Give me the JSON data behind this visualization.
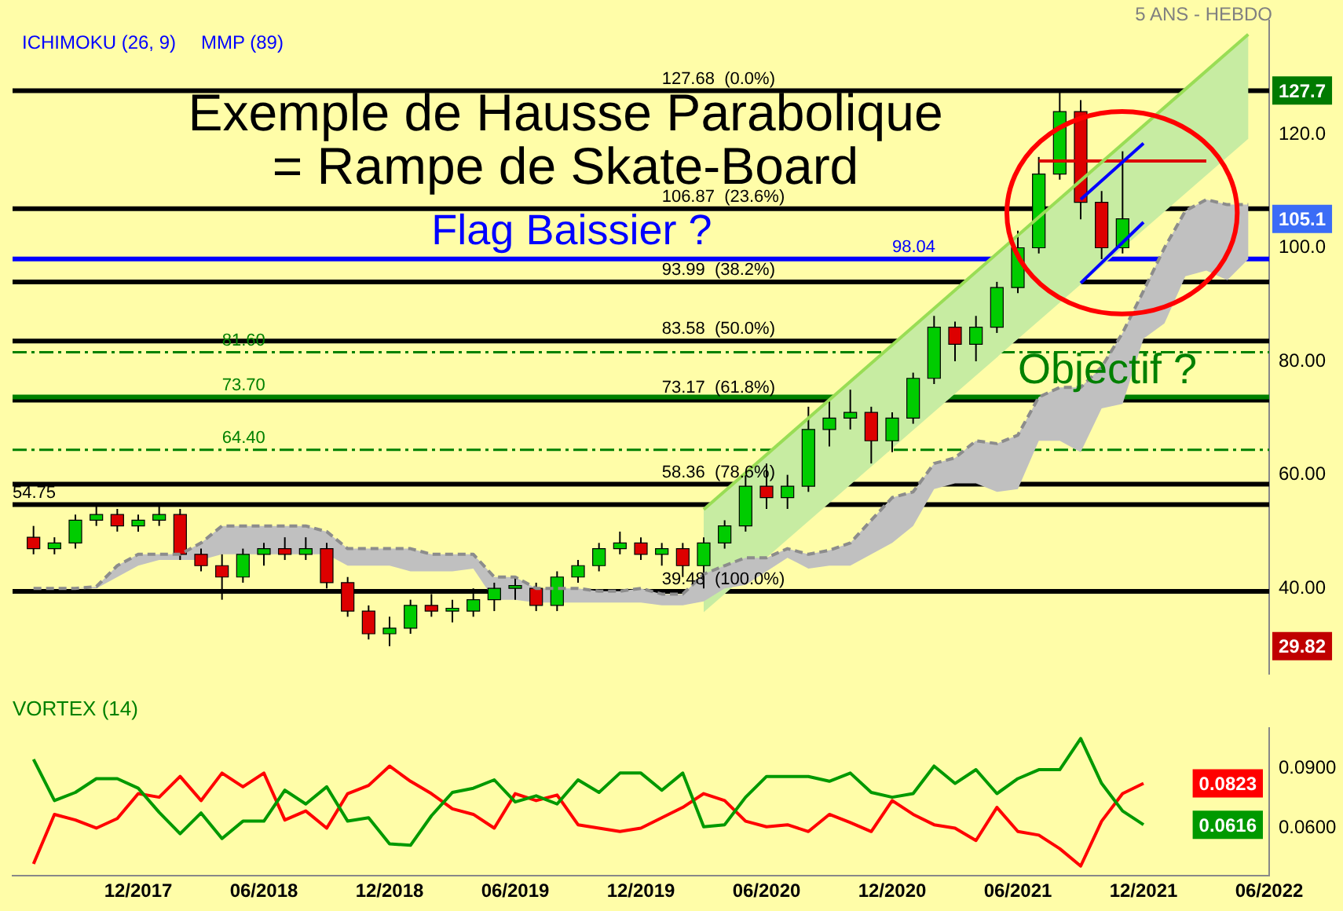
{
  "chart_data": [
    {
      "type": "candlestick",
      "title": "Exemple de Hausse Parabolique\n= Rampe de Skate-Board",
      "subtitle": "5 ANS - HEBDO",
      "x": [
        "2017-07",
        "2017-08",
        "2017-09",
        "2017-10",
        "2017-11",
        "2017-12",
        "2018-01",
        "2018-02",
        "2018-03",
        "2018-04",
        "2018-05",
        "2018-06",
        "2018-07",
        "2018-08",
        "2018-09",
        "2018-10",
        "2018-11",
        "2018-12",
        "2019-01",
        "2019-02",
        "2019-03",
        "2019-04",
        "2019-05",
        "2019-06",
        "2019-07",
        "2019-08",
        "2019-09",
        "2019-10",
        "2019-11",
        "2019-12",
        "2020-01",
        "2020-02",
        "2020-03",
        "2020-04",
        "2020-05",
        "2020-06",
        "2020-07",
        "2020-08",
        "2020-09",
        "2020-10",
        "2020-11",
        "2020-12",
        "2021-01",
        "2021-02",
        "2021-03",
        "2021-04",
        "2021-05",
        "2021-06",
        "2021-07",
        "2021-08",
        "2021-09",
        "2021-10",
        "2021-11"
      ],
      "ohlc": [
        [
          49,
          51,
          46,
          47
        ],
        [
          47,
          49,
          46,
          48
        ],
        [
          48,
          53,
          47,
          52
        ],
        [
          52,
          55,
          51,
          53
        ],
        [
          53,
          54,
          50,
          51
        ],
        [
          51,
          53,
          50,
          52
        ],
        [
          52,
          55,
          51,
          53
        ],
        [
          53,
          54,
          45,
          46
        ],
        [
          46,
          47,
          43,
          44
        ],
        [
          44,
          46,
          38,
          42
        ],
        [
          42,
          47,
          41,
          46
        ],
        [
          46,
          48,
          44,
          47
        ],
        [
          47,
          49,
          45,
          46
        ],
        [
          46,
          49,
          45,
          47
        ],
        [
          47,
          48,
          40,
          41
        ],
        [
          41,
          42,
          35,
          36
        ],
        [
          36,
          37,
          31,
          32
        ],
        [
          32,
          35,
          29.82,
          33
        ],
        [
          33,
          38,
          32,
          37
        ],
        [
          37,
          39,
          35,
          36
        ],
        [
          36,
          38,
          34,
          36.5
        ],
        [
          36,
          40,
          35,
          38
        ],
        [
          38,
          41,
          36,
          40
        ],
        [
          40,
          42,
          38,
          40.5
        ],
        [
          40,
          41,
          36,
          37
        ],
        [
          37,
          43,
          36,
          42
        ],
        [
          42,
          45,
          41,
          44
        ],
        [
          44,
          48,
          43,
          47
        ],
        [
          47,
          50,
          46,
          48
        ],
        [
          48,
          49,
          45,
          46
        ],
        [
          46,
          48,
          44,
          47
        ],
        [
          47,
          48,
          42,
          44
        ],
        [
          44,
          49,
          40,
          48
        ],
        [
          48,
          52,
          47,
          51
        ],
        [
          51,
          60,
          50,
          58
        ],
        [
          58,
          62,
          54,
          56
        ],
        [
          56,
          60,
          54,
          58
        ],
        [
          58,
          72,
          57,
          68
        ],
        [
          68,
          73,
          65,
          70
        ],
        [
          70,
          75,
          68,
          71
        ],
        [
          71,
          72,
          62,
          66
        ],
        [
          66,
          71,
          64,
          70
        ],
        [
          70,
          78,
          69,
          77
        ],
        [
          77,
          88,
          76,
          86
        ],
        [
          86,
          87,
          80,
          83
        ],
        [
          83,
          88,
          80,
          86
        ],
        [
          86,
          94,
          85,
          93
        ],
        [
          93,
          103,
          92,
          100
        ],
        [
          100,
          116,
          99,
          113
        ],
        [
          113,
          127.7,
          112,
          124
        ],
        [
          124,
          126,
          105,
          108
        ],
        [
          108,
          110,
          98,
          100
        ],
        [
          100,
          117,
          99,
          105.1
        ]
      ],
      "colors": [
        "#dd0000",
        "#00cc00",
        "#00cc00",
        "#00cc00",
        "#dd0000",
        "#00cc00",
        "#00cc00",
        "#dd0000",
        "#dd0000",
        "#dd0000",
        "#00cc00",
        "#00cc00",
        "#dd0000",
        "#00cc00",
        "#dd0000",
        "#dd0000",
        "#dd0000",
        "#00cc00",
        "#00cc00",
        "#dd0000",
        "#00cc00",
        "#00cc00",
        "#00cc00",
        "#00cc00",
        "#dd0000",
        "#00cc00",
        "#00cc00",
        "#00cc00",
        "#00cc00",
        "#dd0000",
        "#00cc00",
        "#dd0000",
        "#00cc00",
        "#00cc00",
        "#00cc00",
        "#dd0000",
        "#00cc00",
        "#00cc00",
        "#00cc00",
        "#00cc00",
        "#dd0000",
        "#00cc00",
        "#00cc00",
        "#00cc00",
        "#dd0000",
        "#00cc00",
        "#00cc00",
        "#00cc00",
        "#00cc00",
        "#00cc00",
        "#dd0000",
        "#dd0000",
        "#00cc00"
      ],
      "series": [
        {
          "type": "line",
          "color": "#99dd55",
          "x": [
            "2020-03",
            "2022-05"
          ],
          "values": [
            53.9,
            137.6
          ],
          "upper": [
            53.9,
            137.6
          ],
          "lower": [
            35.8,
            119.2
          ]
        },
        {
          "type": "line",
          "color": "#8c8c8c",
          "line_style": "dashed",
          "x": [
            "2017-07",
            "2017-08",
            "2017-09",
            "2017-10",
            "2017-11",
            "2017-12",
            "2018-01",
            "2018-02",
            "2018-03",
            "2018-04",
            "2018-05",
            "2018-06",
            "2018-07",
            "2018-08",
            "2018-09",
            "2018-10",
            "2018-11",
            "2018-12",
            "2019-01",
            "2019-02",
            "2019-03",
            "2019-04",
            "2019-05",
            "2019-06",
            "2019-07",
            "2019-08",
            "2019-09",
            "2019-10",
            "2019-11",
            "2019-12",
            "2020-01",
            "2020-02",
            "2020-03",
            "2020-04",
            "2020-05",
            "2020-06",
            "2020-07",
            "2020-08",
            "2020-09",
            "2020-10",
            "2020-11",
            "2020-12",
            "2021-01",
            "2021-02",
            "2021-03",
            "2021-04",
            "2021-05",
            "2021-06",
            "2021-07",
            "2021-08",
            "2021-09",
            "2021-10",
            "2021-11",
            "2021-12",
            "2022-01",
            "2022-02",
            "2022-03",
            "2022-04",
            "2022-05"
          ],
          "values": [
            40,
            40,
            40,
            40.3,
            44,
            46,
            46,
            46,
            48,
            51,
            51,
            51,
            51,
            51,
            50,
            47,
            47,
            47,
            47,
            46,
            46,
            46,
            42,
            42,
            40,
            40,
            40,
            39.5,
            39.5,
            40,
            39,
            39,
            42.5,
            44,
            45.4,
            45.4,
            47,
            46,
            46.7,
            48,
            52,
            56,
            57,
            62,
            63,
            66,
            65.5,
            67,
            73.7,
            75.4,
            75.4,
            79,
            85,
            92.4,
            100,
            106.5,
            108.5,
            107.6,
            107.6
          ],
          "upper": [
            40,
            40,
            40,
            40.3,
            44,
            46,
            46,
            46,
            48,
            51,
            51,
            51,
            51,
            51,
            50,
            47,
            47,
            47,
            47,
            46,
            46,
            46,
            42,
            42,
            40,
            40,
            40,
            39.5,
            39.5,
            40,
            39,
            39,
            42.5,
            44,
            45.4,
            45.4,
            47,
            46,
            46.7,
            48,
            52,
            56,
            57,
            62,
            63,
            66,
            65.5,
            67,
            73.7,
            75.4,
            75.4,
            79,
            85,
            92.4,
            100,
            106.5,
            108.5,
            107.6,
            107.6
          ],
          "lower": [
            40,
            40,
            40,
            40,
            42,
            44,
            45,
            45,
            45,
            46,
            46,
            46,
            46,
            46,
            46,
            44,
            44,
            44,
            43,
            43,
            43,
            43.5,
            38,
            38,
            37.5,
            37.5,
            37.5,
            37.5,
            37.5,
            37.5,
            37,
            37,
            37.7,
            40,
            40.6,
            43,
            45.4,
            43.5,
            44,
            44,
            46,
            48,
            51,
            57.5,
            58.5,
            58.5,
            57,
            57.5,
            66,
            66,
            64,
            71.7,
            72.5,
            84,
            86.7,
            95,
            96,
            94.3,
            98
          ]
        },
        {
          "type": "line",
          "color": "#0000ff",
          "x": [
            "2021-09",
            "2021-12"
          ],
          "values": [
            108.5,
            118.4
          ]
        },
        {
          "type": "line",
          "color": "#0000ff",
          "x": [
            "2021-09",
            "2021-12"
          ],
          "values": [
            93.8,
            104.5
          ]
        },
        {
          "type": "line",
          "color": "#dd0000",
          "x": [
            "2021-07",
            "2022-03"
          ],
          "values": [
            115.3,
            115.3
          ]
        }
      ],
      "xlim": [
        "2017-06",
        "2022-06"
      ],
      "ylim": [
        25,
        140
      ],
      "yticks": [
        {
          "value": 40,
          "label": "40.00"
        },
        {
          "value": 60,
          "label": "60.00"
        },
        {
          "value": 80,
          "label": "80.00"
        },
        {
          "value": 100,
          "label": "100.0"
        },
        {
          "value": 120,
          "label": "120.0"
        }
      ],
      "tick_labels": "y",
      "ref_lines": [
        {
          "axis": "y",
          "value": 127.68,
          "color": "#000000"
        },
        {
          "axis": "y",
          "value": 106.87,
          "color": "#000000"
        },
        {
          "axis": "y",
          "value": 93.99,
          "color": "#000000"
        },
        {
          "axis": "y",
          "value": 83.58,
          "color": "#000000"
        },
        {
          "axis": "y",
          "value": 73.17,
          "color": "#000000"
        },
        {
          "axis": "y",
          "value": 58.36,
          "color": "#000000"
        },
        {
          "axis": "y",
          "value": 39.48,
          "color": "#000000"
        },
        {
          "axis": "y",
          "value": 54.75,
          "color": "#000000"
        },
        {
          "axis": "y",
          "value": 81.6,
          "color": "#008000",
          "line_style": "dashed"
        },
        {
          "axis": "y",
          "value": 73.7,
          "color": "#008000"
        },
        {
          "axis": "y",
          "value": 64.4,
          "color": "#008000",
          "line_style": "dashed"
        },
        {
          "axis": "y",
          "value": 98.04,
          "color": "#0000ff"
        }
      ],
      "annotations": [
        "ICHIMOKU (26, 9)",
        "MMP (89)",
        {
          "text": "127.68  (0.0%)",
          "x": "2020-01",
          "y": 127.68
        },
        {
          "text": "106.87  (23.6%)",
          "x": "2020-01",
          "y": 106.87
        },
        {
          "text": "93.99  (38.2%)",
          "x": "2020-01",
          "y": 93.99
        },
        {
          "text": "83.58  (50.0%)",
          "x": "2020-01",
          "y": 83.58
        },
        {
          "text": "73.17  (61.8%)",
          "x": "2020-01",
          "y": 73.17
        },
        {
          "text": "58.36  (78.6%)",
          "x": "2020-01",
          "y": 58.36
        },
        {
          "text": "39.48  (100.0%)",
          "x": "2020-01",
          "y": 39.48
        },
        {
          "text": "54.75",
          "x": "2017-06",
          "y": 54.75
        },
        {
          "text": "81.60",
          "x": "2018-04",
          "y": 81.6
        },
        {
          "text": "73.70",
          "x": "2018-04",
          "y": 73.7
        },
        {
          "text": "64.40",
          "x": "2018-04",
          "y": 64.4
        },
        {
          "text": "98.04",
          "x": "2020-12",
          "y": 98.04
        },
        {
          "text": "Flag Baissier ?",
          "x": "2019-02",
          "y": 99
        },
        {
          "text": "Objectif ?",
          "x": "2021-06",
          "y": 74.5
        },
        {
          "text": "127.7",
          "y": 127.7
        },
        {
          "text": "105.1",
          "y": 105.1
        },
        {
          "text": "29.82",
          "y": 29.82
        }
      ]
    },
    {
      "type": "line",
      "title": "VORTEX (14)",
      "x": [
        "2017-07",
        "2017-08",
        "2017-09",
        "2017-10",
        "2017-11",
        "2017-12",
        "2018-01",
        "2018-02",
        "2018-03",
        "2018-04",
        "2018-05",
        "2018-06",
        "2018-07",
        "2018-08",
        "2018-09",
        "2018-10",
        "2018-11",
        "2018-12",
        "2019-01",
        "2019-02",
        "2019-03",
        "2019-04",
        "2019-05",
        "2019-06",
        "2019-07",
        "2019-08",
        "2019-09",
        "2019-10",
        "2019-11",
        "2019-12",
        "2020-01",
        "2020-02",
        "2020-03",
        "2020-04",
        "2020-05",
        "2020-06",
        "2020-07",
        "2020-08",
        "2020-09",
        "2020-10",
        "2020-11",
        "2020-12",
        "2021-01",
        "2021-02",
        "2021-03",
        "2021-04",
        "2021-05",
        "2021-06",
        "2021-07",
        "2021-08",
        "2021-09",
        "2021-10",
        "2021-11",
        "2021-12"
      ],
      "series": [
        {
          "color": "#009900",
          "values": [
            0.0944,
            0.0737,
            0.0778,
            0.0847,
            0.0847,
            0.0799,
            0.0678,
            0.0571,
            0.0675,
            0.0547,
            0.0634,
            0.0634,
            0.0789,
            0.072,
            0.0806,
            0.0634,
            0.0651,
            0.052,
            0.0513,
            0.0661,
            0.0778,
            0.0799,
            0.0841,
            0.073,
            0.0761,
            0.072,
            0.0841,
            0.0778,
            0.0875,
            0.0875,
            0.0789,
            0.0875,
            0.0606,
            0.0616,
            0.0754,
            0.0858,
            0.0858,
            0.0858,
            0.0834,
            0.0875,
            0.0778,
            0.0754,
            0.0772,
            0.091,
            0.0823,
            0.0892,
            0.0772,
            0.0847,
            0.0892,
            0.0892,
            0.1048,
            0.0823,
            0.0685,
            0.0616
          ]
        },
        {
          "color": "#ff0000",
          "values": [
            0.042,
            0.0668,
            0.064,
            0.0599,
            0.0647,
            0.0772,
            0.0754,
            0.0858,
            0.0737,
            0.0875,
            0.0806,
            0.0875,
            0.064,
            0.0685,
            0.0599,
            0.0772,
            0.0813,
            0.091,
            0.0834,
            0.0772,
            0.0696,
            0.0668,
            0.0599,
            0.0772,
            0.0737,
            0.0765,
            0.0616,
            0.0599,
            0.0582,
            0.0599,
            0.0651,
            0.0703,
            0.0772,
            0.0737,
            0.0634,
            0.0606,
            0.0616,
            0.0582,
            0.0668,
            0.0627,
            0.0582,
            0.0737,
            0.0668,
            0.0616,
            0.0599,
            0.0537,
            0.0703,
            0.0582,
            0.0564,
            0.0496,
            0.0409,
            0.0634,
            0.0772,
            0.0823
          ]
        }
      ],
      "xlim": [
        "2017-06",
        "2022-06"
      ],
      "xticks": [
        {
          "value": "2017-12",
          "label": "12/2017"
        },
        {
          "value": "2018-06",
          "label": "06/2018"
        },
        {
          "value": "2018-12",
          "label": "12/2018"
        },
        {
          "value": "2019-06",
          "label": "06/2019"
        },
        {
          "value": "2019-12",
          "label": "12/2019"
        },
        {
          "value": "2020-06",
          "label": "06/2020"
        },
        {
          "value": "2020-12",
          "label": "12/2020"
        },
        {
          "value": "2021-06",
          "label": "06/2021"
        },
        {
          "value": "2021-12",
          "label": "12/2021"
        },
        {
          "value": "2022-06",
          "label": "06/2022"
        }
      ],
      "ylim": [
        0.036,
        0.11
      ],
      "yticks": [
        {
          "value": 0.09,
          "label": "0.0900"
        },
        {
          "value": 0.06,
          "label": "0.0600"
        }
      ],
      "annotations": [
        "0.0616",
        "0.0823"
      ]
    }
  ]
}
